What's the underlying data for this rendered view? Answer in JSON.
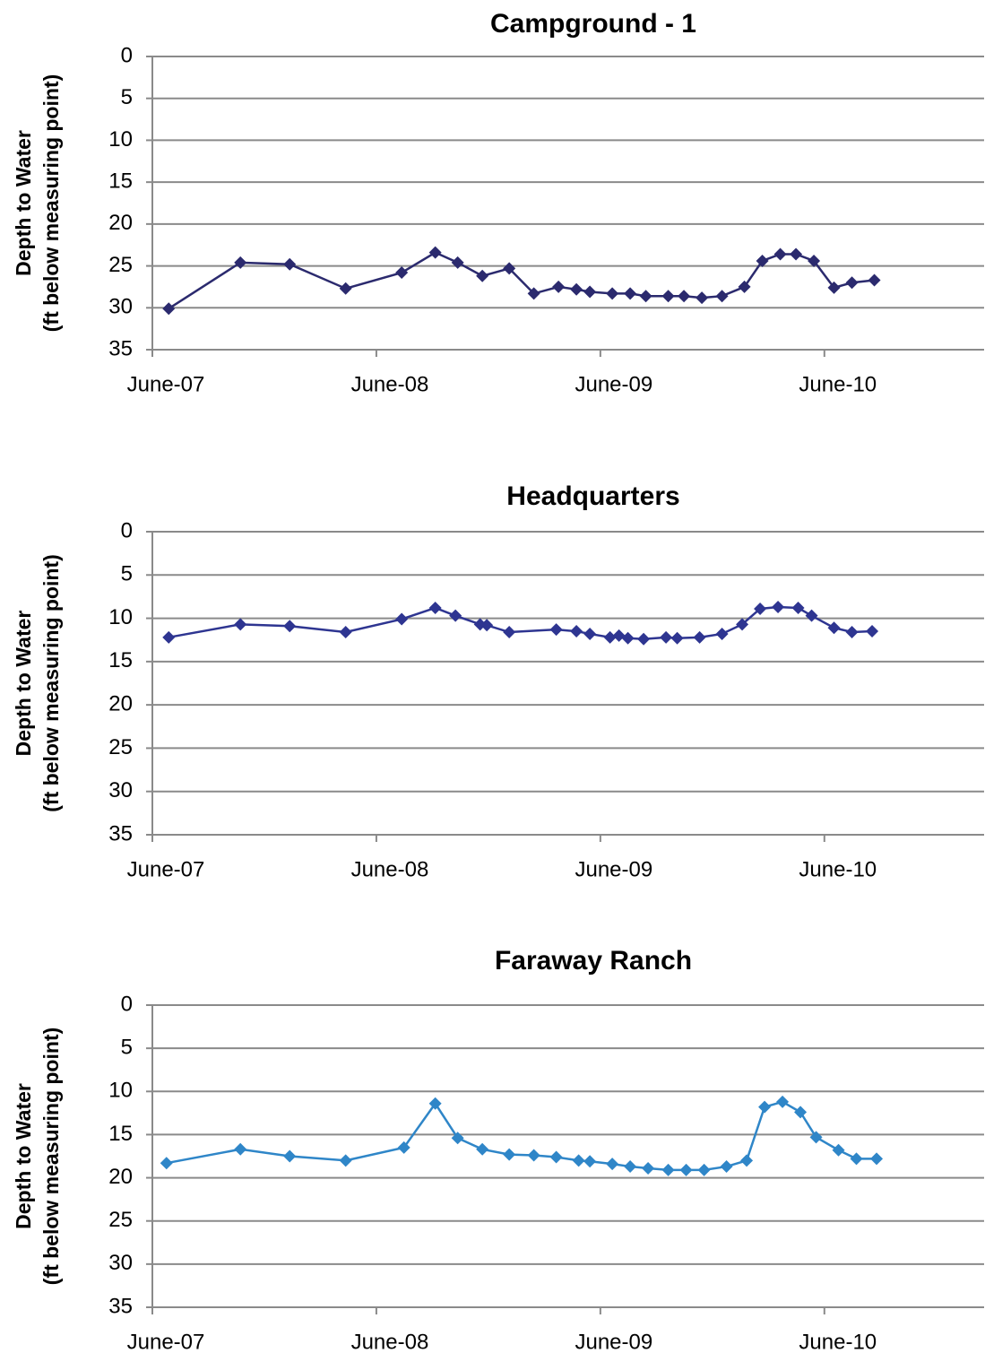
{
  "chart_data": [
    {
      "type": "line",
      "title": "Campground - 1",
      "ylabel": [
        "Depth to Water",
        "(ft below measuring point)"
      ],
      "ylim": [
        0,
        35
      ],
      "yticks": [
        0,
        5,
        10,
        15,
        20,
        25,
        30,
        35
      ],
      "y_inverted": true,
      "grid": true,
      "xlim": [
        2007.417,
        2011.13
      ],
      "xticks": [
        {
          "value": 2007.417,
          "label": "June-07"
        },
        {
          "value": 2008.417,
          "label": "June-08"
        },
        {
          "value": 2009.417,
          "label": "June-09"
        },
        {
          "value": 2010.417,
          "label": "June-10"
        }
      ],
      "x": [
        2007.49,
        2007.81,
        2008.03,
        2008.28,
        2008.53,
        2008.68,
        2008.78,
        2008.89,
        2009.01,
        2009.12,
        2009.23,
        2009.31,
        2009.37,
        2009.47,
        2009.55,
        2009.62,
        2009.72,
        2009.79,
        2009.87,
        2009.96,
        2010.06,
        2010.14,
        2010.22,
        2010.29,
        2010.37,
        2010.46,
        2010.54,
        2010.64
      ],
      "series": [
        {
          "color": "#2b2a6e",
          "values": [
            30.1,
            24.6,
            24.8,
            27.7,
            25.8,
            23.4,
            24.6,
            26.2,
            25.3,
            28.3,
            27.5,
            27.8,
            28.1,
            28.3,
            28.3,
            28.6,
            28.6,
            28.6,
            28.8,
            28.6,
            27.5,
            24.4,
            23.6,
            23.6,
            24.4,
            27.6,
            27.0,
            26.7
          ]
        }
      ]
    },
    {
      "type": "line",
      "title": "Headquarters",
      "ylabel": [
        "Depth to Water",
        "(ft below measuring point)"
      ],
      "ylim": [
        0,
        35
      ],
      "yticks": [
        0,
        5,
        10,
        15,
        20,
        25,
        30,
        35
      ],
      "y_inverted": true,
      "grid": true,
      "xlim": [
        2007.417,
        2011.13
      ],
      "xticks": [
        {
          "value": 2007.417,
          "label": "June-07"
        },
        {
          "value": 2008.417,
          "label": "June-08"
        },
        {
          "value": 2009.417,
          "label": "June-09"
        },
        {
          "value": 2010.417,
          "label": "June-10"
        }
      ],
      "x": [
        2007.49,
        2007.81,
        2008.03,
        2008.28,
        2008.53,
        2008.68,
        2008.77,
        2008.88,
        2008.91,
        2009.01,
        2009.22,
        2009.31,
        2009.37,
        2009.46,
        2009.5,
        2009.54,
        2009.61,
        2009.71,
        2009.76,
        2009.86,
        2009.96,
        2010.05,
        2010.13,
        2010.21,
        2010.3,
        2010.36,
        2010.46,
        2010.54,
        2010.63
      ],
      "series": [
        {
          "color": "#2e3591",
          "values": [
            12.2,
            10.7,
            10.9,
            11.6,
            10.1,
            8.8,
            9.7,
            10.7,
            10.8,
            11.6,
            11.3,
            11.5,
            11.8,
            12.2,
            12.0,
            12.3,
            12.4,
            12.2,
            12.3,
            12.2,
            11.8,
            10.7,
            8.9,
            8.7,
            8.8,
            9.7,
            11.1,
            11.6,
            11.5
          ]
        }
      ]
    },
    {
      "type": "line",
      "title": "Faraway Ranch",
      "ylabel": [
        "Depth to Water",
        "(ft below measuring point)"
      ],
      "ylim": [
        0,
        35
      ],
      "yticks": [
        0,
        5,
        10,
        15,
        20,
        25,
        30,
        35
      ],
      "y_inverted": true,
      "grid": true,
      "xlim": [
        2007.417,
        2011.13
      ],
      "xticks": [
        {
          "value": 2007.417,
          "label": "June-07"
        },
        {
          "value": 2008.417,
          "label": "June-08"
        },
        {
          "value": 2009.417,
          "label": "June-09"
        },
        {
          "value": 2010.417,
          "label": "June-10"
        }
      ],
      "x": [
        2007.48,
        2007.81,
        2008.03,
        2008.28,
        2008.54,
        2008.68,
        2008.78,
        2008.89,
        2009.01,
        2009.12,
        2009.22,
        2009.32,
        2009.37,
        2009.47,
        2009.55,
        2009.63,
        2009.72,
        2009.8,
        2009.88,
        2009.98,
        2010.07,
        2010.15,
        2010.23,
        2010.31,
        2010.38,
        2010.48,
        2010.56,
        2010.65
      ],
      "series": [
        {
          "color": "#2f86c8",
          "values": [
            18.3,
            16.7,
            17.5,
            18.0,
            16.5,
            11.4,
            15.4,
            16.7,
            17.3,
            17.4,
            17.6,
            18.0,
            18.1,
            18.4,
            18.7,
            18.9,
            19.1,
            19.1,
            19.1,
            18.7,
            18.0,
            11.8,
            11.2,
            12.4,
            15.3,
            16.8,
            17.8,
            17.8
          ]
        }
      ]
    }
  ]
}
